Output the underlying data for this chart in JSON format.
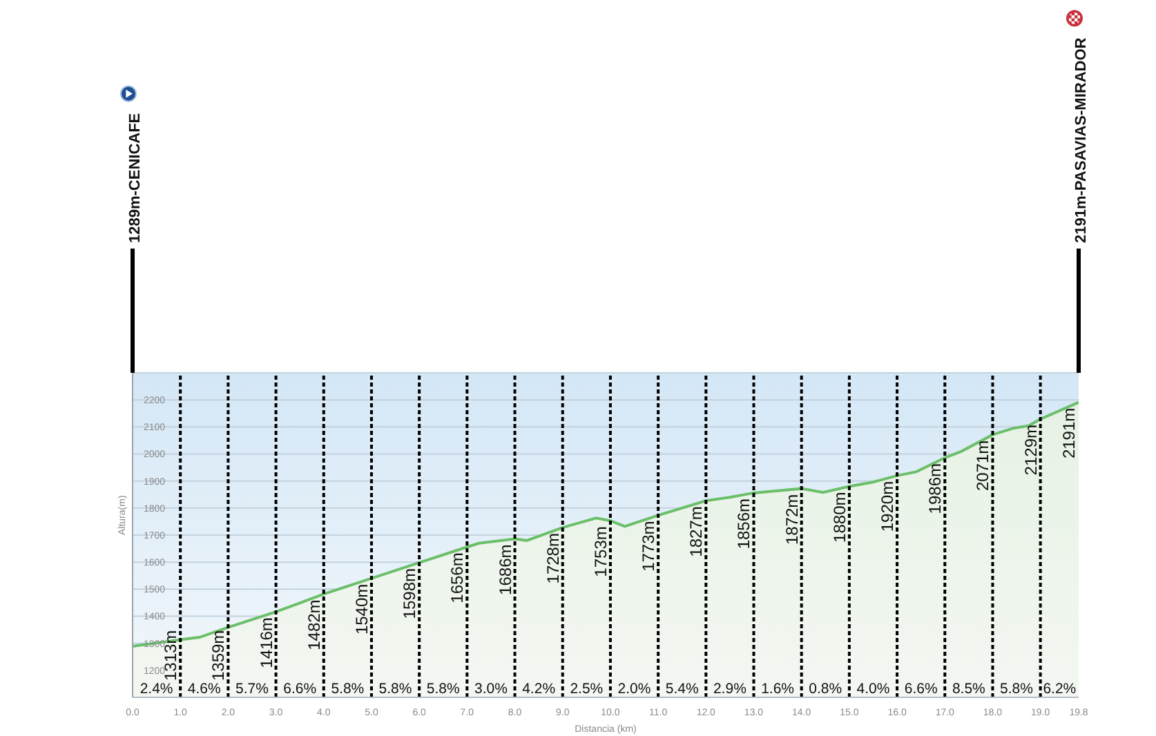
{
  "chart_data": {
    "type": "area",
    "xlabel": "Distancia (km)",
    "ylabel": "Altura(m)",
    "x": [
      0,
      1,
      1.4,
      2,
      3,
      3.5,
      4,
      5,
      6,
      7,
      7.25,
      8,
      8.25,
      9,
      9.7,
      10,
      10.3,
      11,
      12,
      12.5,
      13,
      14,
      14.45,
      15,
      15.5,
      16,
      16.4,
      17,
      17.35,
      18,
      18.45,
      18.75,
      19,
      19.8
    ],
    "values": [
      1289,
      1313,
      1322,
      1359,
      1416,
      1449,
      1482,
      1540,
      1598,
      1656,
      1670,
      1686,
      1680,
      1728,
      1763,
      1753,
      1732,
      1773,
      1827,
      1840,
      1856,
      1872,
      1858,
      1880,
      1896,
      1920,
      1934,
      1986,
      2010,
      2071,
      2096,
      2104,
      2129,
      2191
    ],
    "value_labels": [
      null,
      "1313m",
      null,
      "1359m",
      "1416m",
      null,
      "1482m",
      "1540m",
      "1598m",
      "1656m",
      null,
      "1686m",
      null,
      "1728m",
      null,
      "1753m",
      null,
      "1773m",
      "1827m",
      null,
      "1856m",
      "1872m",
      null,
      "1880m",
      null,
      "1920m",
      null,
      "1986m",
      null,
      "2071m",
      null,
      null,
      "2129m",
      "2191m"
    ],
    "color": "#6cbf6a",
    "xlim": [
      0,
      19.8
    ],
    "xticks": [
      {
        "value": 0,
        "label": "0.0"
      },
      {
        "value": 1,
        "label": "1.0"
      },
      {
        "value": 2,
        "label": "2.0"
      },
      {
        "value": 3,
        "label": "3.0"
      },
      {
        "value": 4,
        "label": "4.0"
      },
      {
        "value": 5,
        "label": "5.0"
      },
      {
        "value": 6,
        "label": "6.0"
      },
      {
        "value": 7,
        "label": "7.0"
      },
      {
        "value": 8,
        "label": "8.0"
      },
      {
        "value": 9,
        "label": "9.0"
      },
      {
        "value": 10,
        "label": "10.0"
      },
      {
        "value": 11,
        "label": "11.0"
      },
      {
        "value": 12,
        "label": "12.0"
      },
      {
        "value": 13,
        "label": "13.0"
      },
      {
        "value": 14,
        "label": "14.0"
      },
      {
        "value": 15,
        "label": "15.0"
      },
      {
        "value": 16,
        "label": "16.0"
      },
      {
        "value": 17,
        "label": "17.0"
      },
      {
        "value": 18,
        "label": "18.0"
      },
      {
        "value": 19,
        "label": "19.0"
      },
      {
        "value": 19.8,
        "label": "19.8"
      }
    ],
    "ylim": [
      1100,
      2300
    ],
    "yticks": [
      1200,
      1300,
      1400,
      1500,
      1600,
      1700,
      1800,
      1900,
      2000,
      2100,
      2200
    ],
    "grid": "y",
    "ref_lines": [
      {
        "axis": "x",
        "value": 0,
        "label": "1289m-CENICAFE",
        "color": "#000000",
        "line_style": "solid"
      },
      {
        "axis": "x",
        "value": 1,
        "color": "#000000",
        "line_style": "dashed"
      },
      {
        "axis": "x",
        "value": 2,
        "color": "#000000",
        "line_style": "dashed"
      },
      {
        "axis": "x",
        "value": 3,
        "color": "#000000",
        "line_style": "dashed"
      },
      {
        "axis": "x",
        "value": 4,
        "color": "#000000",
        "line_style": "dashed"
      },
      {
        "axis": "x",
        "value": 5,
        "color": "#000000",
        "line_style": "dashed"
      },
      {
        "axis": "x",
        "value": 6,
        "color": "#000000",
        "line_style": "dashed"
      },
      {
        "axis": "x",
        "value": 7,
        "color": "#000000",
        "line_style": "dashed"
      },
      {
        "axis": "x",
        "value": 8,
        "color": "#000000",
        "line_style": "dashed"
      },
      {
        "axis": "x",
        "value": 9,
        "color": "#000000",
        "line_style": "dashed"
      },
      {
        "axis": "x",
        "value": 10,
        "color": "#000000",
        "line_style": "dashed"
      },
      {
        "axis": "x",
        "value": 11,
        "color": "#000000",
        "line_style": "dashed"
      },
      {
        "axis": "x",
        "value": 12,
        "color": "#000000",
        "line_style": "dashed"
      },
      {
        "axis": "x",
        "value": 13,
        "color": "#000000",
        "line_style": "dashed"
      },
      {
        "axis": "x",
        "value": 14,
        "color": "#000000",
        "line_style": "dashed"
      },
      {
        "axis": "x",
        "value": 15,
        "color": "#000000",
        "line_style": "dashed"
      },
      {
        "axis": "x",
        "value": 16,
        "color": "#000000",
        "line_style": "dashed"
      },
      {
        "axis": "x",
        "value": 17,
        "color": "#000000",
        "line_style": "dashed"
      },
      {
        "axis": "x",
        "value": 18,
        "color": "#000000",
        "line_style": "dashed"
      },
      {
        "axis": "x",
        "value": 19,
        "color": "#000000",
        "line_style": "dashed"
      },
      {
        "axis": "x",
        "value": 19.8,
        "label": "2191m-PASAVIAS-MIRADOR",
        "color": "#000000",
        "line_style": "solid"
      }
    ],
    "annotations": [
      "2.4%",
      "4.6%",
      "5.7%",
      "6.6%",
      "5.8%",
      "5.8%",
      "5.8%",
      "3.0%",
      "4.2%",
      "2.5%",
      "2.0%",
      "5.4%",
      "2.9%",
      "1.6%",
      "0.8%",
      "4.0%",
      "6.6%",
      "8.5%",
      "5.8%",
      "6.2%"
    ]
  }
}
